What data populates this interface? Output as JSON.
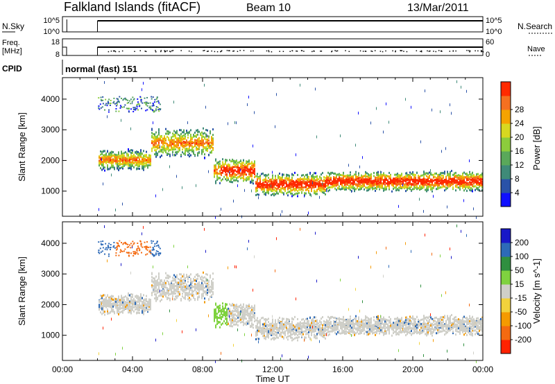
{
  "header": {
    "station": "Falkland Islands (fitACF)",
    "beam": "Beam 10",
    "date": "13/Mar/2011"
  },
  "nsky_panel": {
    "left_label": "N.Sky",
    "right_label": "N.Search",
    "left_ticks": [
      "10^5",
      "10^0"
    ],
    "right_ticks": [
      "10^5",
      "10^0"
    ]
  },
  "freq_panel": {
    "left_label_1": "Freq.",
    "left_label_2": "[MHz]",
    "right_label": "Nave",
    "left_ticks": [
      "18",
      "8"
    ],
    "right_ticks": [
      "60",
      "0"
    ]
  },
  "cpid": {
    "label": "CPID",
    "value": "normal (fast) 151"
  },
  "colors": {
    "power_scale": [
      "#1010ff",
      "#2a52a8",
      "#3f8a78",
      "#5aa85a",
      "#8ccc3c",
      "#d8d820",
      "#f5a300",
      "#f57020",
      "#ff2a00"
    ],
    "velocity_scale": [
      "#1818c8",
      "#2d6ab8",
      "#2f8f3f",
      "#7fd23f",
      "#cfcfc8",
      "#f2d23c",
      "#f59a00",
      "#f46a10",
      "#ff2200"
    ]
  },
  "chart_data": [
    {
      "type": "heatmap",
      "name": "power",
      "xlabel": "",
      "ylabel": "Slant Range [km]",
      "x_ticks": [
        "00:00",
        "04:00",
        "08:00",
        "12:00",
        "16:00",
        "20:00",
        "00:00"
      ],
      "y_ticks": [
        1000,
        2000,
        3000,
        4000
      ],
      "xlim_hours": [
        0,
        24
      ],
      "ylim_km": [
        180,
        4700
      ],
      "colorbar": {
        "label": "Power [dB]",
        "ticks": [
          "4",
          "8",
          "12",
          "16",
          "20",
          "24",
          "28"
        ]
      },
      "echo_bands": [
        {
          "t_start": 2.0,
          "t_end": 5.0,
          "r_center": 2050,
          "r_width": 350
        },
        {
          "t_start": 5.0,
          "t_end": 8.6,
          "r_center": 2600,
          "r_width": 500
        },
        {
          "t_start": 8.6,
          "t_end": 11.0,
          "r_center": 1700,
          "r_width": 450
        },
        {
          "t_start": 11.0,
          "t_end": 15.0,
          "r_center": 1250,
          "r_width": 400
        },
        {
          "t_start": 15.0,
          "t_end": 24.0,
          "r_center": 1350,
          "r_width": 350
        }
      ]
    },
    {
      "type": "heatmap",
      "name": "velocity",
      "xlabel": "Time UT",
      "ylabel": "Slant Range [km]",
      "x_ticks": [
        "00:00",
        "04:00",
        "08:00",
        "12:00",
        "16:00",
        "20:00",
        "00:00"
      ],
      "y_ticks": [
        1000,
        2000,
        3000,
        4000
      ],
      "xlim_hours": [
        0,
        24
      ],
      "ylim_km": [
        180,
        4700
      ],
      "colorbar": {
        "label": "Velocity [m s^-1]",
        "ticks": [
          "200",
          "100",
          "50",
          "15",
          "-15",
          "-50",
          "-100",
          "-200"
        ]
      }
    }
  ]
}
